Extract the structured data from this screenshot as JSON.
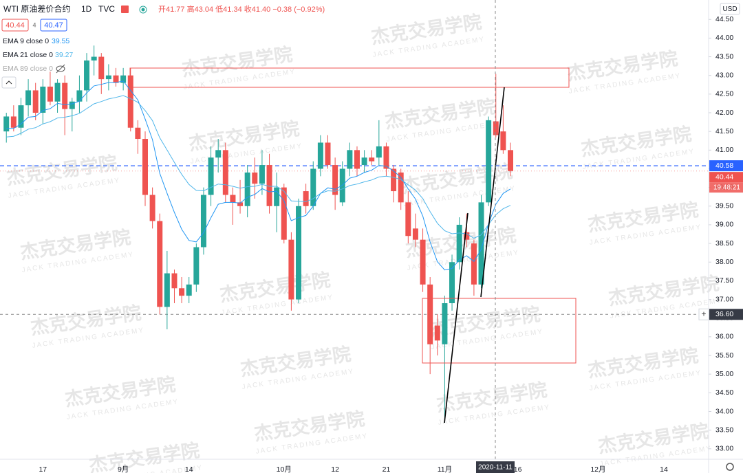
{
  "chart_data": {
    "type": "candlestick",
    "title": "WTI 原油差价合约",
    "interval": "1D",
    "source": "TVC",
    "ohlc_text": "开41.77 高43.04 低41.34 收41.40 −0.38 (−0.92%)",
    "currency": "USD",
    "quote": {
      "bid": 40.44,
      "spread": 4,
      "ask": 40.47
    },
    "watermark": {
      "cn": "杰克交易学院",
      "en": "JACK TRADING ACADEMY"
    },
    "countdown": "19:48:21",
    "up_color": "#26a69a",
    "down_color": "#ef5350",
    "grid": false,
    "categories": [
      null,
      null,
      null,
      null,
      null,
      "17",
      null,
      null,
      null,
      null,
      null,
      null,
      null,
      null,
      null,
      null,
      "9月",
      null,
      null,
      null,
      null,
      null,
      null,
      null,
      null,
      "14",
      null,
      null,
      null,
      null,
      null,
      null,
      null,
      null,
      null,
      null,
      null,
      null,
      "10月",
      null,
      null,
      null,
      null,
      null,
      null,
      "12",
      null,
      null,
      null,
      null,
      null,
      null,
      "21",
      null,
      null,
      null,
      null,
      null,
      null,
      null,
      "11月",
      null,
      null,
      null,
      null,
      null,
      null,
      null,
      null,
      null,
      "16",
      null,
      null,
      null,
      null,
      null,
      null,
      null,
      null,
      null,
      null,
      "12月",
      null,
      null,
      null,
      null,
      null,
      null,
      null,
      null,
      "14"
    ],
    "open": [
      41.5,
      41.9,
      41.6,
      42.2,
      42.6,
      42.0,
      42.7,
      42.3,
      42.8,
      42.1,
      42.3,
      42.6,
      43.4,
      43.5,
      42.9,
      43.0,
      42.8,
      43.0,
      41.6,
      41.3,
      39.8,
      39.1,
      36.8,
      37.7,
      37.3,
      37.1,
      37.4,
      38.4,
      39.8,
      40.8,
      41.0,
      39.8,
      39.6,
      39.5,
      40.4,
      40.1,
      40.6,
      39.5,
      40.0,
      38.6,
      37.0,
      39.9,
      39.5,
      40.5,
      41.2,
      40.6,
      39.6,
      40.5,
      41.0,
      40.6,
      40.8,
      40.8,
      41.1,
      40.5,
      40.4,
      39.6,
      38.9,
      38.6,
      37.4,
      36.3,
      35.8,
      36.9,
      38.0,
      38.8,
      38.5,
      37.4,
      39.6,
      41.77,
      41.5,
      41.0,
      null,
      null,
      null,
      null,
      null,
      null,
      null,
      null,
      null,
      null,
      null,
      null,
      null,
      null,
      null,
      null,
      null,
      null,
      null,
      null,
      null
    ],
    "high": [
      42.0,
      42.2,
      42.4,
      42.9,
      42.8,
      42.9,
      43.1,
      42.9,
      43.0,
      42.4,
      43.0,
      43.6,
      43.8,
      43.6,
      43.3,
      43.2,
      43.2,
      43.2,
      41.8,
      41.5,
      40.0,
      39.3,
      38.3,
      37.8,
      37.6,
      37.6,
      38.5,
      40.0,
      41.1,
      41.3,
      41.2,
      40.0,
      40.2,
      40.6,
      40.8,
      41.0,
      40.9,
      40.4,
      40.1,
      38.8,
      39.7,
      40.1,
      40.7,
      41.4,
      41.4,
      40.8,
      40.7,
      41.2,
      41.1,
      41.0,
      41.0,
      41.8,
      41.2,
      40.6,
      40.5,
      39.9,
      39.3,
      38.9,
      37.6,
      36.6,
      37.1,
      38.2,
      39.2,
      39.3,
      38.6,
      39.8,
      41.9,
      43.04,
      42.2,
      41.2,
      null,
      null,
      null,
      null,
      null,
      null,
      null,
      null,
      null,
      null,
      null,
      null,
      null,
      null,
      null,
      null,
      null,
      null,
      null,
      null,
      null
    ],
    "low": [
      41.2,
      41.5,
      41.4,
      41.9,
      41.8,
      41.7,
      42.2,
      42.0,
      41.4,
      41.5,
      42.0,
      42.3,
      43.0,
      42.5,
      42.6,
      42.7,
      42.6,
      41.5,
      40.9,
      39.5,
      38.9,
      36.6,
      36.2,
      36.9,
      36.9,
      36.9,
      37.2,
      38.2,
      39.5,
      40.4,
      39.6,
      39.0,
      39.3,
      39.2,
      39.7,
      39.8,
      39.3,
      38.8,
      38.5,
      36.7,
      36.9,
      39.3,
      39.4,
      40.3,
      40.5,
      39.4,
      39.5,
      40.3,
      40.3,
      40.4,
      40.6,
      40.6,
      40.3,
      39.6,
      39.4,
      38.5,
      38.4,
      37.2,
      35.0,
      35.5,
      33.7,
      36.7,
      37.8,
      38.4,
      37.1,
      37.3,
      39.5,
      41.34,
      40.9,
      40.3,
      null,
      null,
      null,
      null,
      null,
      null,
      null,
      null,
      null,
      null,
      null,
      null,
      null,
      null,
      null,
      null,
      null,
      null,
      null,
      null,
      null
    ],
    "close": [
      41.9,
      41.6,
      42.2,
      42.6,
      42.0,
      42.7,
      42.3,
      42.8,
      42.1,
      42.3,
      42.6,
      43.4,
      43.5,
      42.9,
      43.0,
      42.8,
      43.0,
      41.6,
      41.3,
      39.8,
      39.1,
      36.8,
      37.7,
      37.3,
      37.1,
      37.4,
      38.4,
      39.8,
      40.8,
      41.0,
      39.8,
      39.6,
      39.5,
      40.4,
      40.1,
      40.6,
      39.5,
      40.0,
      38.6,
      37.0,
      39.5,
      39.5,
      40.5,
      41.2,
      40.6,
      39.8,
      40.5,
      41.0,
      40.5,
      40.8,
      40.7,
      41.1,
      40.5,
      39.9,
      39.6,
      38.7,
      38.6,
      37.4,
      35.8,
      35.9,
      36.9,
      38.0,
      39.0,
      38.6,
      37.4,
      39.6,
      41.8,
      41.4,
      41.0,
      40.44,
      null,
      null,
      null,
      null,
      null,
      null,
      null,
      null,
      null,
      null,
      null,
      null,
      null,
      null,
      null,
      null,
      null,
      null,
      null,
      null,
      null
    ],
    "overlays": [
      {
        "name": "EMA 9 close 0",
        "color": "#2196f3",
        "values": [
          41.58,
          41.58,
          41.7,
          41.88,
          41.9,
          42.06,
          42.11,
          42.25,
          42.22,
          42.24,
          42.31,
          42.53,
          42.72,
          42.76,
          42.81,
          42.81,
          42.85,
          42.6,
          42.34,
          41.83,
          41.28,
          40.38,
          39.84,
          39.33,
          38.88,
          38.58,
          38.54,
          38.79,
          39.19,
          39.55,
          39.6,
          39.6,
          39.58,
          39.74,
          39.81,
          39.97,
          39.88,
          39.9,
          39.64,
          39.11,
          39.19,
          39.25,
          39.5,
          39.84,
          39.99,
          39.95,
          40.06,
          40.25,
          40.3,
          40.4,
          40.46,
          40.59,
          40.57,
          40.44,
          40.27,
          39.96,
          39.69,
          39.23,
          38.54,
          38.01,
          37.79,
          37.83,
          38.06,
          38.17,
          38.02,
          38.34,
          39.03,
          39.55,
          39.84,
          39.96,
          null,
          null,
          null,
          null,
          null,
          null,
          null,
          null,
          null,
          null,
          null,
          null,
          null,
          null,
          null,
          null,
          null,
          null,
          null,
          null,
          null
        ]
      },
      {
        "name": "EMA 21 close 0",
        "color": "#4fb6ea",
        "values": [
          41.35,
          41.37,
          41.45,
          41.56,
          41.6,
          41.7,
          41.76,
          41.86,
          41.88,
          41.92,
          41.98,
          42.11,
          42.24,
          42.3,
          42.37,
          42.41,
          42.46,
          42.38,
          42.28,
          42.06,
          41.79,
          41.33,
          41.0,
          40.67,
          40.35,
          40.08,
          39.92,
          39.91,
          40.0,
          40.09,
          40.07,
          40.03,
          39.98,
          40.02,
          40.03,
          40.08,
          40.03,
          40.03,
          39.9,
          39.64,
          39.63,
          39.62,
          39.7,
          39.84,
          39.91,
          39.9,
          39.96,
          40.05,
          40.09,
          40.15,
          40.2,
          40.28,
          40.3,
          40.27,
          40.21,
          40.07,
          39.93,
          39.7,
          39.35,
          39.04,
          38.84,
          38.76,
          38.78,
          38.76,
          38.64,
          38.73,
          39.01,
          39.27,
          39.43,
          39.52,
          null,
          null,
          null,
          null,
          null,
          null,
          null,
          null,
          null,
          null,
          null,
          null,
          null,
          null,
          null,
          null,
          null,
          null,
          null,
          null,
          null
        ]
      },
      {
        "name": "EMA 89 close 0",
        "visible": false
      }
    ],
    "price_line": {
      "value": 40.58,
      "color": "#2962ff"
    },
    "crosshair": {
      "price": {
        "value": 36.6,
        "label": "36.60"
      },
      "date": "2020-11-11"
    },
    "ylim": [
      32.72,
      45.02
    ],
    "yticks": [
      {
        "value": 33,
        "label": "33.00"
      },
      {
        "value": 33.5,
        "label": "33.50"
      },
      {
        "value": 34,
        "label": "34.00"
      },
      {
        "value": 34.5,
        "label": "34.50"
      },
      {
        "value": 35,
        "label": "35.00"
      },
      {
        "value": 35.5,
        "label": "35.50"
      },
      {
        "value": 36,
        "label": "36.00"
      },
      {
        "value": 36.5,
        "label": "36.50"
      },
      {
        "value": 37,
        "label": "37.00"
      },
      {
        "value": 37.5,
        "label": "37.50"
      },
      {
        "value": 38,
        "label": "38.00"
      },
      {
        "value": 38.5,
        "label": "38.50"
      },
      {
        "value": 39,
        "label": "39.00"
      },
      {
        "value": 39.5,
        "label": "39.50"
      },
      {
        "value": 40,
        "label": "40.00"
      },
      {
        "value": 40.5,
        "label": "40.50"
      },
      {
        "value": 41,
        "label": "41.00"
      },
      {
        "value": 41.5,
        "label": "41.50"
      },
      {
        "value": 42,
        "label": "42.00"
      },
      {
        "value": 42.5,
        "label": "42.50"
      },
      {
        "value": 43,
        "label": "43.00"
      },
      {
        "value": 43.5,
        "label": "43.50"
      },
      {
        "value": 44,
        "label": "44.00"
      },
      {
        "value": 44.5,
        "label": "44.50"
      }
    ]
  }
}
